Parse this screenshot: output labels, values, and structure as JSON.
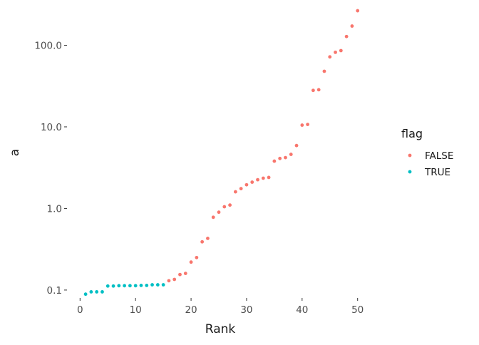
{
  "chart_data": {
    "type": "scatter",
    "xlabel": "Rank",
    "ylabel": "a",
    "y_scale": "log10",
    "xlim": [
      0,
      50
    ],
    "ylim": [
      0.08,
      260
    ],
    "x_ticks": [
      0,
      10,
      20,
      30,
      40,
      50
    ],
    "x_tick_labels": [
      "0",
      "10",
      "20",
      "30",
      "40",
      "50"
    ],
    "y_ticks": [
      0.1,
      1,
      10,
      100
    ],
    "y_tick_labels": [
      "0.1",
      "1.0",
      "10.0",
      "100.0"
    ],
    "grid": false,
    "legend": {
      "title": "flag",
      "position": "right",
      "entries": [
        {
          "label": "FALSE",
          "color": "#F8766D"
        },
        {
          "label": "TRUE",
          "color": "#00BFC4"
        }
      ]
    },
    "series": [
      {
        "name": "TRUE",
        "color": "#00BFC4",
        "x": [
          1,
          2,
          3,
          4,
          5,
          6,
          7,
          8,
          9,
          10,
          11,
          12,
          13,
          14,
          15
        ],
        "y": [
          0.089,
          0.095,
          0.095,
          0.095,
          0.112,
          0.112,
          0.113,
          0.113,
          0.113,
          0.113,
          0.114,
          0.114,
          0.116,
          0.116,
          0.116
        ]
      },
      {
        "name": "FALSE",
        "color": "#F8766D",
        "x": [
          16,
          17,
          18,
          19,
          20,
          21,
          22,
          23,
          24,
          25,
          26,
          27,
          28,
          29,
          30,
          31,
          32,
          33,
          34,
          35,
          36,
          37,
          38,
          39,
          40,
          41,
          42,
          43,
          44,
          45,
          46,
          47,
          48,
          49,
          50
        ],
        "y": [
          0.13,
          0.135,
          0.155,
          0.16,
          0.22,
          0.25,
          0.39,
          0.43,
          0.78,
          0.9,
          1.05,
          1.1,
          1.6,
          1.75,
          1.95,
          2.1,
          2.25,
          2.35,
          2.4,
          3.8,
          4.1,
          4.2,
          4.6,
          5.9,
          10.5,
          10.7,
          28,
          28.5,
          48,
          72,
          82,
          86,
          128,
          172,
          265
        ]
      }
    ]
  }
}
